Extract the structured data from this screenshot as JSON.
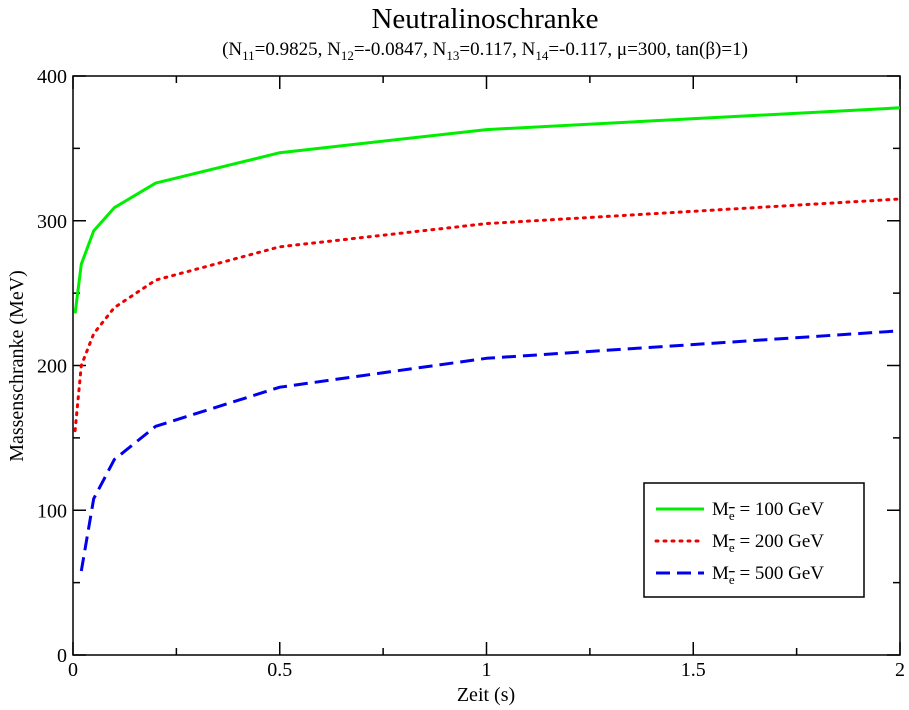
{
  "chart_data": {
    "type": "line",
    "title": "Neutralinoschranke",
    "subtitle_parts": [
      {
        "t": "(N",
        "sub": false
      },
      {
        "t": "11",
        "sub": true
      },
      {
        "t": "=0.9825, N",
        "sub": false
      },
      {
        "t": "12",
        "sub": true
      },
      {
        "t": "=-0.0847, N",
        "sub": false
      },
      {
        "t": "13",
        "sub": true
      },
      {
        "t": "=0.117, N",
        "sub": false
      },
      {
        "t": "14",
        "sub": true
      },
      {
        "t": "=-0.117, μ=300, tan(β)=1)",
        "sub": false
      }
    ],
    "xlabel": "Zeit (s)",
    "ylabel": "Massenschranke (MeV)",
    "xlim": [
      0,
      2
    ],
    "ylim": [
      0,
      400
    ],
    "x_ticks": [
      0,
      0.5,
      1,
      1.5,
      2
    ],
    "x_tick_labels": [
      "0",
      "0.5",
      "1",
      "1.5",
      "2"
    ],
    "x_minor_step": 0.25,
    "y_ticks": [
      0,
      100,
      200,
      300,
      400
    ],
    "y_tick_labels": [
      "0",
      "100",
      "200",
      "300",
      "400"
    ],
    "y_minor_step": 50,
    "grid": false,
    "legend_position": "bottom-right",
    "series": [
      {
        "name_prefix": "M",
        "name_sub": "e",
        "name_suffix": " = 100 GeV",
        "color": "#00ee00",
        "dash": "solid",
        "x": [
          0.005,
          0.02,
          0.05,
          0.1,
          0.2,
          0.5,
          1.0,
          2.0
        ],
        "y": [
          236,
          270,
          293,
          309,
          326,
          347,
          363,
          378
        ]
      },
      {
        "name_prefix": "M",
        "name_sub": "e",
        "name_suffix": " = 200 GeV",
        "color": "#ee0000",
        "dash": "dotted",
        "x": [
          0.005,
          0.02,
          0.05,
          0.1,
          0.2,
          0.5,
          1.0,
          2.0
        ],
        "y": [
          155,
          200,
          222,
          240,
          259,
          282,
          298,
          315
        ]
      },
      {
        "name_prefix": "M",
        "name_sub": "e",
        "name_suffix": " = 500 GeV",
        "color": "#0000ee",
        "dash": "dashed",
        "x": [
          0.02,
          0.05,
          0.1,
          0.2,
          0.5,
          1.0,
          2.0
        ],
        "y": [
          58,
          108,
          135,
          158,
          185,
          205,
          224
        ]
      }
    ]
  }
}
